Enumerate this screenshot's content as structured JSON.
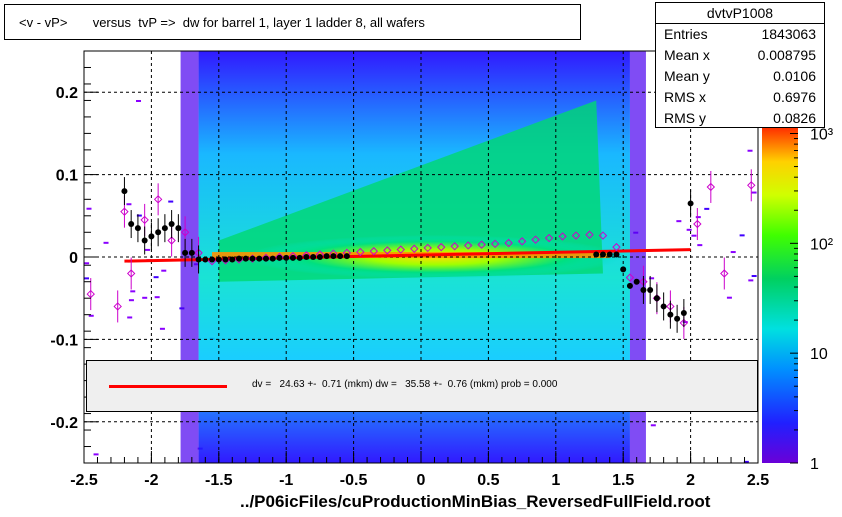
{
  "title": "<v - vP>       versus  tvP =>  dw for barrel 1, layer 1 ladder 8, all wafers",
  "stats": {
    "name": "dvtvP1008",
    "rows": [
      {
        "label": "Entries",
        "value": "1843063"
      },
      {
        "label": "Mean x",
        "value": "0.008795"
      },
      {
        "label": "Mean y",
        "value": "0.0106"
      },
      {
        "label": "RMS x",
        "value": "0.6976"
      },
      {
        "label": "RMS y",
        "value": "0.0826"
      }
    ]
  },
  "fit_text": "dv =   24.63 +-  0.71 (mkm) dw =   35.58 +-  0.76 (mkm) prob = 0.000",
  "footer": "../P06icFiles/cuProductionMinBias_ReversedFullField.root",
  "colors": {
    "fit_line": "#ff0000",
    "profile_black": "#000000",
    "profile_magenta": "#cc00cc"
  },
  "chart_data": {
    "type": "heatmap",
    "xlim": [
      -2.5,
      2.5
    ],
    "ylim": [
      -0.25,
      0.25
    ],
    "x_ticks": [
      "-2.5",
      "-2",
      "-1.5",
      "-1",
      "-0.5",
      "0",
      "0.5",
      "1",
      "1.5",
      "2",
      "2.5"
    ],
    "y_ticks": [
      "-0.2",
      "-0.1",
      "0",
      "0.1",
      "0.2"
    ],
    "z_scale": "log",
    "z_ticks": [
      "1",
      "10",
      "10²",
      "10³"
    ],
    "grid": true,
    "fit_line": {
      "x": [
        -2.2,
        2.0
      ],
      "y": [
        -0.005,
        0.009
      ]
    },
    "profile_black": {
      "x": [
        -2.2,
        -2.15,
        -2.1,
        -2.05,
        -2.0,
        -1.95,
        -1.9,
        -1.85,
        -1.8,
        -1.75,
        -1.7,
        -1.65,
        -1.6,
        -1.55,
        -1.5,
        -1.45,
        -1.4,
        -1.35,
        -1.3,
        -1.25,
        -1.2,
        -1.15,
        -1.1,
        -1.05,
        -1.0,
        -0.95,
        -0.9,
        -0.85,
        -0.8,
        -0.75,
        -0.7,
        -0.65,
        -0.6,
        -0.55,
        1.3,
        1.35,
        1.4,
        1.45,
        1.5,
        1.55,
        1.6,
        1.65,
        1.7,
        1.75,
        1.8,
        1.85,
        1.9,
        1.95,
        2.0
      ],
      "y": [
        0.08,
        0.04,
        0.035,
        0.02,
        0.025,
        0.03,
        0.035,
        0.04,
        0.035,
        0.005,
        0.005,
        -0.003,
        -0.003,
        -0.003,
        -0.003,
        -0.003,
        -0.003,
        -0.002,
        -0.002,
        -0.002,
        -0.002,
        -0.002,
        -0.002,
        -0.001,
        -0.001,
        -0.001,
        -0.001,
        0.0,
        0.0,
        0.0,
        0.001,
        0.001,
        0.001,
        0.001,
        0.003,
        0.003,
        0.003,
        0.003,
        -0.015,
        -0.035,
        -0.03,
        -0.04,
        -0.04,
        -0.05,
        -0.06,
        -0.07,
        -0.075,
        -0.068,
        0.065
      ]
    },
    "profile_magenta": {
      "x": [
        -2.45,
        -2.25,
        -2.2,
        -2.15,
        -2.05,
        -1.95,
        -1.85,
        -1.75,
        -1.65,
        -1.55,
        -1.45,
        -1.35,
        -1.25,
        -1.15,
        -1.05,
        -0.95,
        -0.85,
        -0.75,
        -0.65,
        -0.55,
        -0.45,
        -0.35,
        -0.25,
        -0.15,
        -0.05,
        0.05,
        0.15,
        0.25,
        0.35,
        0.45,
        0.55,
        0.65,
        0.75,
        0.85,
        0.95,
        1.05,
        1.15,
        1.25,
        1.35,
        1.45,
        1.55,
        1.65,
        1.75,
        1.85,
        1.95,
        2.05,
        2.15,
        2.25,
        2.45
      ],
      "y": [
        -0.045,
        -0.06,
        0.055,
        -0.02,
        0.045,
        0.07,
        0.02,
        0.03,
        0.005,
        -0.005,
        -0.004,
        -0.003,
        -0.002,
        -0.001,
        0.0,
        0.001,
        0.002,
        0.003,
        0.004,
        0.005,
        0.006,
        0.007,
        0.008,
        0.009,
        0.01,
        0.011,
        0.012,
        0.013,
        0.014,
        0.015,
        0.016,
        0.017,
        0.019,
        0.021,
        0.023,
        0.025,
        0.026,
        0.027,
        0.026,
        0.012,
        -0.025,
        -0.03,
        -0.05,
        -0.06,
        -0.08,
        0.04,
        0.085,
        -0.02,
        0.087
      ]
    }
  }
}
